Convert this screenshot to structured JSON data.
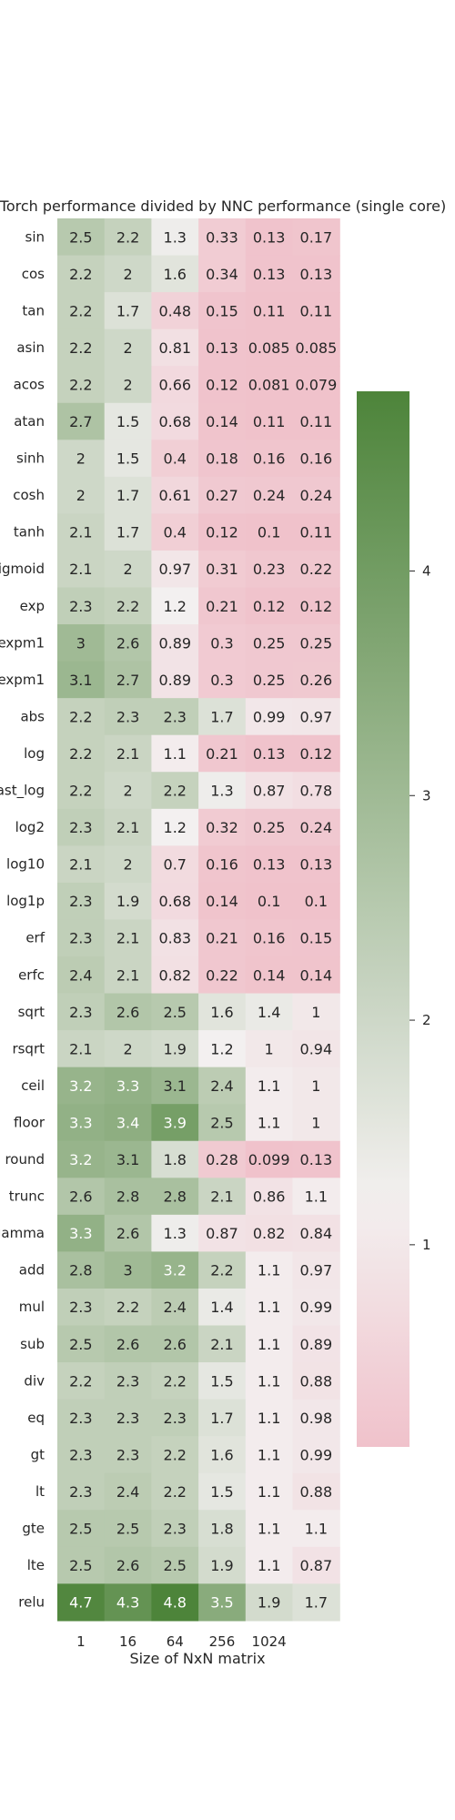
{
  "chart_data": {
    "type": "heatmap",
    "title": "Torch performance divided by NNC performance (single core)",
    "xlabel": "Size of NxN matrix",
    "ylabel": "",
    "x_categories": [
      "1",
      "16",
      "64",
      "256",
      "1024",
      ""
    ],
    "y_categories": [
      "sin",
      "cos",
      "tan",
      "asin",
      "acos",
      "atan",
      "sinh",
      "cosh",
      "tanh",
      "sigmoid",
      "exp",
      "expm1",
      "expm1",
      "abs",
      "log",
      "fast_log",
      "log2",
      "log10",
      "log1p",
      "erf",
      "erfc",
      "sqrt",
      "rsqrt",
      "ceil",
      "floor",
      "round",
      "trunc",
      "lgamma",
      "add",
      "mul",
      "sub",
      "div",
      "eq",
      "gt",
      "lt",
      "gte",
      "lte",
      "relu"
    ],
    "values": [
      [
        2.5,
        2.2,
        1.3,
        0.33,
        0.13,
        0.17
      ],
      [
        2.2,
        2,
        1.6,
        0.34,
        0.13,
        0.13
      ],
      [
        2.2,
        1.7,
        0.48,
        0.15,
        0.11,
        0.11
      ],
      [
        2.2,
        2,
        0.81,
        0.13,
        0.085,
        0.085
      ],
      [
        2.2,
        2,
        0.66,
        0.12,
        0.081,
        0.079
      ],
      [
        2.7,
        1.5,
        0.68,
        0.14,
        0.11,
        0.11
      ],
      [
        2,
        1.5,
        0.4,
        0.18,
        0.16,
        0.16
      ],
      [
        2,
        1.7,
        0.61,
        0.27,
        0.24,
        0.24
      ],
      [
        2.1,
        1.7,
        0.4,
        0.12,
        0.1,
        0.11
      ],
      [
        2.1,
        2,
        0.97,
        0.31,
        0.23,
        0.22
      ],
      [
        2.3,
        2.2,
        1.2,
        0.21,
        0.12,
        0.12
      ],
      [
        3,
        2.6,
        0.89,
        0.3,
        0.25,
        0.25
      ],
      [
        3.1,
        2.7,
        0.89,
        0.3,
        0.25,
        0.26
      ],
      [
        2.2,
        2.3,
        2.3,
        1.7,
        0.99,
        0.97
      ],
      [
        2.2,
        2.1,
        1.1,
        0.21,
        0.13,
        0.12
      ],
      [
        2.2,
        2,
        2.2,
        1.3,
        0.87,
        0.78
      ],
      [
        2.3,
        2.1,
        1.2,
        0.32,
        0.25,
        0.24
      ],
      [
        2.1,
        2,
        0.7,
        0.16,
        0.13,
        0.13
      ],
      [
        2.3,
        1.9,
        0.68,
        0.14,
        0.1,
        0.1
      ],
      [
        2.3,
        2.1,
        0.83,
        0.21,
        0.16,
        0.15
      ],
      [
        2.4,
        2.1,
        0.82,
        0.22,
        0.14,
        0.14
      ],
      [
        2.3,
        2.6,
        2.5,
        1.6,
        1.4,
        1
      ],
      [
        2.1,
        2,
        1.9,
        1.2,
        1,
        0.94
      ],
      [
        3.2,
        3.3,
        3.1,
        2.4,
        1.1,
        1
      ],
      [
        3.3,
        3.4,
        3.9,
        2.5,
        1.1,
        1
      ],
      [
        3.2,
        3.1,
        1.8,
        0.28,
        0.099,
        0.13
      ],
      [
        2.6,
        2.8,
        2.8,
        2.1,
        0.86,
        1.1
      ],
      [
        3.3,
        2.6,
        1.3,
        0.87,
        0.82,
        0.84
      ],
      [
        2.8,
        3,
        3.2,
        2.2,
        1.1,
        0.97
      ],
      [
        2.3,
        2.2,
        2.4,
        1.4,
        1.1,
        0.99
      ],
      [
        2.5,
        2.6,
        2.6,
        2.1,
        1.1,
        0.89
      ],
      [
        2.2,
        2.3,
        2.2,
        1.5,
        1.1,
        0.88
      ],
      [
        2.3,
        2.3,
        2.3,
        1.7,
        1.1,
        0.98
      ],
      [
        2.3,
        2.3,
        2.2,
        1.6,
        1.1,
        0.99
      ],
      [
        2.3,
        2.4,
        2.2,
        1.5,
        1.1,
        0.88
      ],
      [
        2.5,
        2.5,
        2.3,
        1.8,
        1.1,
        1.1
      ],
      [
        2.5,
        2.6,
        2.5,
        1.9,
        1.1,
        0.87
      ],
      [
        4.7,
        4.3,
        4.8,
        3.5,
        1.9,
        1.7
      ]
    ],
    "colorbar": {
      "min": 0.1,
      "max": 4.8,
      "ticks": [
        1,
        2,
        3,
        4
      ],
      "low_color": "#f0c2cb",
      "mid_color": "#f3f0f0",
      "mid_value": 1.2,
      "high_color": "#4d843a"
    },
    "grid": false,
    "legend": "colorbar-right"
  }
}
